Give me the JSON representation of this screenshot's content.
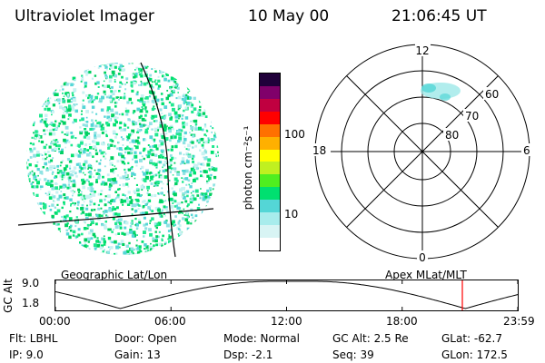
{
  "header": {
    "instrument": "Ultraviolet Imager",
    "date": "10 May 00",
    "time": "21:06:45 UT"
  },
  "colorbar": {
    "label": "photon cm⁻²s⁻¹",
    "ticks": [
      "100",
      "10"
    ],
    "colors": [
      "#ffffff",
      "#d8f4f4",
      "#a8ecec",
      "#54d6d6",
      "#00e070",
      "#50ee20",
      "#c0f020",
      "#ffff00",
      "#ffb000",
      "#ff7000",
      "#ff0000",
      "#c00040",
      "#80006a",
      "#20003a"
    ]
  },
  "polar_plot": {
    "mlt_labels": {
      "top": "12",
      "left": "18",
      "right": "6",
      "bottom": "0"
    },
    "lat_labels": [
      "60",
      "70",
      "80"
    ]
  },
  "altitude_strip": {
    "left_caption": "Geographic Lat/Lon",
    "right_caption": "Apex MLat/MLT",
    "axis_label": "GC Alt",
    "y_ticks": [
      "9.0",
      "1.8"
    ],
    "x_ticks": [
      "00:00",
      "06:00",
      "12:00",
      "18:00",
      "23:59"
    ],
    "current_marker_color": "#ff0000"
  },
  "info": {
    "flt": "Flt: LBHL",
    "ip": "IP:  9.0",
    "door": "Door: Open",
    "gain": "Gain: 13",
    "mode": "Mode: Normal",
    "dsp": "Dsp:    -2.1",
    "gcalt": "GC Alt: 2.5 Re",
    "seq": "Seq: 39",
    "glat": "GLat: -62.7",
    "glon": "GLon: 172.5"
  }
}
